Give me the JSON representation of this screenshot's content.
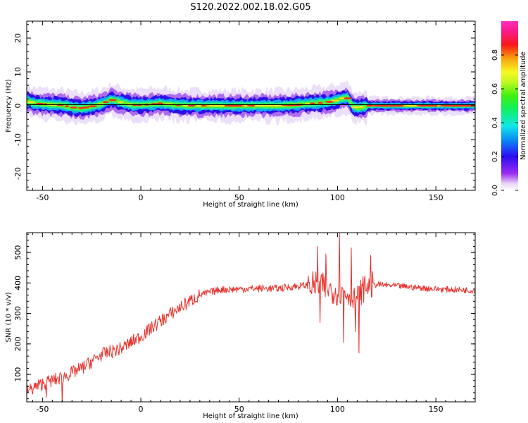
{
  "figure_title": "S120.2022.002.18.02.G05",
  "chart_data": [
    {
      "type": "heatmap",
      "xlabel": "Height of straight line (km)",
      "ylabel": "Frequency (Hz)",
      "xlim": [
        -58,
        170
      ],
      "ylim": [
        -25,
        25
      ],
      "xticks": [
        -50,
        0,
        50,
        100,
        150
      ],
      "yticks": [
        -20,
        -10,
        0,
        10,
        20
      ],
      "colorbar": {
        "label": "Normalized spectral amplitude",
        "range": [
          0,
          1
        ],
        "ticks": [
          "0.0",
          "0.2",
          "0.4",
          "0.6",
          "0.8"
        ],
        "colormap": "gist_ncar-like rainbow (white → purple → blue → cyan → green → yellow → red → pink)"
      },
      "ridge": {
        "x": [
          -58,
          -55,
          -50,
          -45,
          -40,
          -35,
          -30,
          -25,
          -20,
          -15,
          -10,
          -5,
          0,
          5,
          10,
          15,
          20,
          25,
          30,
          40,
          50,
          60,
          70,
          80,
          85,
          90,
          95,
          100,
          103,
          105,
          108,
          110,
          113,
          115,
          120,
          130,
          140,
          150,
          160,
          170
        ],
        "y": [
          1.5,
          0.8,
          0.5,
          0.3,
          0.2,
          -0.5,
          -0.7,
          -0.2,
          0.5,
          1.8,
          1.0,
          0.3,
          0.2,
          0.4,
          0.7,
          0.4,
          0.1,
          0.0,
          0.0,
          0.0,
          0.0,
          0.0,
          0.0,
          0.3,
          0.6,
          0.8,
          1.0,
          1.7,
          2.2,
          2.5,
          -0.2,
          -0.6,
          -0.3,
          0.0,
          0.0,
          0.0,
          0.0,
          0.0,
          0.0,
          0.0
        ]
      }
    },
    {
      "type": "line",
      "xlabel": "Height of straight line (km)",
      "ylabel": "SNR (10 * v/v)",
      "xlim": [
        -58,
        170
      ],
      "ylim": [
        10,
        565
      ],
      "xticks": [
        -50,
        0,
        50,
        100,
        150
      ],
      "yticks": [
        100,
        200,
        300,
        400,
        500
      ],
      "color": "#e8302a",
      "trend": {
        "x": [
          -58,
          -50,
          -40,
          -30,
          -20,
          -10,
          0,
          10,
          20,
          30,
          40,
          50,
          60,
          70,
          80,
          90,
          100,
          110,
          115,
          120,
          130,
          140,
          150,
          160,
          170
        ],
        "y": [
          45,
          70,
          90,
          120,
          165,
          185,
          225,
          275,
          320,
          360,
          378,
          380,
          382,
          382,
          390,
          395,
          370,
          360,
          390,
          395,
          390,
          385,
          380,
          378,
          375
        ]
      },
      "peaks": [
        {
          "x": 90,
          "y": 520
        },
        {
          "x": 94,
          "y": 495
        },
        {
          "x": 101,
          "y": 563
        },
        {
          "x": 103,
          "y": 530
        },
        {
          "x": 107,
          "y": 515
        },
        {
          "x": 111,
          "y": 510
        },
        {
          "x": 117,
          "y": 490
        }
      ],
      "dips": [
        {
          "x": 91,
          "y": 270
        },
        {
          "x": 103,
          "y": 205
        },
        {
          "x": 109,
          "y": 240
        },
        {
          "x": 111,
          "y": 170
        },
        {
          "x": -40,
          "y": 5
        },
        {
          "x": -48,
          "y": 25
        }
      ]
    }
  ]
}
